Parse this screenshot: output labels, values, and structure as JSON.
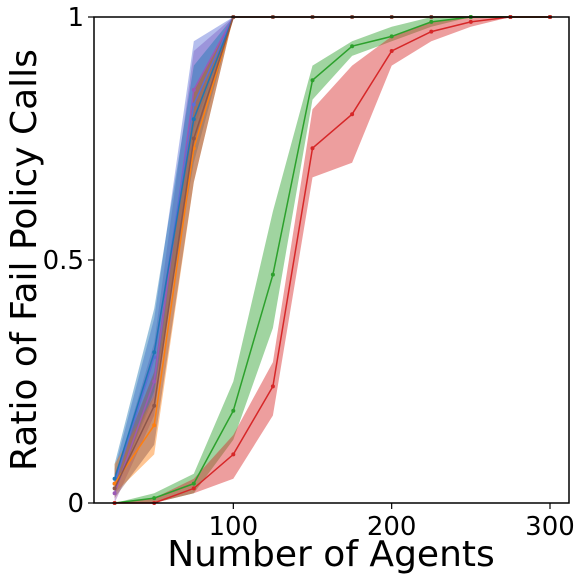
{
  "chart_data": {
    "type": "line",
    "title": "",
    "xlabel": "Number of Agents",
    "ylabel": "Ratio of Fail Policy Calls",
    "xlim": [
      12,
      312
    ],
    "ylim": [
      0,
      1
    ],
    "xticks": [
      100,
      200,
      300
    ],
    "yticks": [
      0,
      0.5,
      1
    ],
    "ytick_labels": [
      "0",
      "0.5",
      "1"
    ],
    "grid": false,
    "legend": "none",
    "series": [
      {
        "color": "#9b59b6",
        "x": [
          25,
          50,
          75,
          100,
          125,
          150,
          175,
          200,
          225,
          250,
          275,
          300
        ],
        "y": [
          0.02,
          0.25,
          0.85,
          1,
          1,
          1,
          1,
          1,
          1,
          1,
          1,
          1
        ],
        "lower": [
          0.0,
          0.18,
          0.77,
          1,
          1,
          1,
          1,
          1,
          1,
          1,
          1,
          1
        ],
        "upper": [
          0.05,
          0.33,
          0.93,
          1,
          1,
          1,
          1,
          1,
          1,
          1,
          1,
          1
        ]
      },
      {
        "color": "#5b6fd6",
        "x": [
          25,
          50,
          75,
          100,
          125,
          150,
          175,
          200,
          225,
          250,
          275,
          300
        ],
        "y": [
          0.04,
          0.3,
          0.82,
          1,
          1,
          1,
          1,
          1,
          1,
          1,
          1,
          1
        ],
        "lower": [
          0.02,
          0.22,
          0.73,
          1,
          1,
          1,
          1,
          1,
          1,
          1,
          1,
          1
        ],
        "upper": [
          0.07,
          0.38,
          0.95,
          1,
          1,
          1,
          1,
          1,
          1,
          1,
          1,
          1
        ]
      },
      {
        "color": "#1f77b4",
        "x": [
          25,
          50,
          75,
          100,
          125,
          150,
          175,
          200,
          225,
          250,
          275,
          300
        ],
        "y": [
          0.05,
          0.31,
          0.79,
          1,
          1,
          1,
          1,
          1,
          1,
          1,
          1,
          1
        ],
        "lower": [
          0.02,
          0.23,
          0.7,
          1,
          1,
          1,
          1,
          1,
          1,
          1,
          1,
          1
        ],
        "upper": [
          0.08,
          0.4,
          0.9,
          1,
          1,
          1,
          1,
          1,
          1,
          1,
          1,
          1
        ]
      },
      {
        "color": "#ff7f0e",
        "x": [
          25,
          50,
          75,
          100,
          125,
          150,
          175,
          200,
          225,
          250,
          275,
          300
        ],
        "y": [
          0.04,
          0.16,
          0.73,
          1,
          1,
          1,
          1,
          1,
          1,
          1,
          1,
          1
        ],
        "lower": [
          0.02,
          0.1,
          0.66,
          1,
          1,
          1,
          1,
          1,
          1,
          1,
          1,
          1
        ],
        "upper": [
          0.08,
          0.22,
          0.85,
          1,
          1,
          1,
          1,
          1,
          1,
          1,
          1,
          1
        ]
      },
      {
        "color": "#8c564b",
        "x": [
          25,
          50,
          75,
          100,
          125,
          150,
          175,
          200,
          225,
          250,
          275,
          300
        ],
        "y": [
          0.03,
          0.2,
          0.75,
          1,
          1,
          1,
          1,
          1,
          1,
          1,
          1,
          1
        ],
        "lower": [
          0.01,
          0.12,
          0.66,
          1,
          1,
          1,
          1,
          1,
          1,
          1,
          1,
          1
        ],
        "upper": [
          0.06,
          0.27,
          0.85,
          1,
          1,
          1,
          1,
          1,
          1,
          1,
          1,
          1
        ]
      },
      {
        "color": "#2ca02c",
        "x": [
          25,
          50,
          75,
          100,
          125,
          150,
          175,
          200,
          225,
          250,
          275,
          300
        ],
        "y": [
          0.0,
          0.01,
          0.04,
          0.19,
          0.47,
          0.87,
          0.94,
          0.96,
          0.99,
          1,
          1,
          1
        ],
        "lower": [
          0.0,
          0.0,
          0.02,
          0.13,
          0.36,
          0.83,
          0.92,
          0.95,
          0.98,
          1,
          1,
          1
        ],
        "upper": [
          0.0,
          0.02,
          0.06,
          0.25,
          0.6,
          0.9,
          0.95,
          0.98,
          1,
          1,
          1,
          1
        ]
      },
      {
        "color": "#d62728",
        "x": [
          25,
          50,
          75,
          100,
          125,
          150,
          175,
          200,
          225,
          250,
          275,
          300
        ],
        "y": [
          0.0,
          0.0,
          0.03,
          0.1,
          0.24,
          0.73,
          0.8,
          0.93,
          0.97,
          0.99,
          1,
          1
        ],
        "lower": [
          0.0,
          0.0,
          0.02,
          0.05,
          0.18,
          0.67,
          0.7,
          0.9,
          0.95,
          0.98,
          1,
          1
        ],
        "upper": [
          0.0,
          0.01,
          0.05,
          0.14,
          0.29,
          0.81,
          0.9,
          0.96,
          0.99,
          1,
          1,
          1
        ]
      }
    ]
  }
}
